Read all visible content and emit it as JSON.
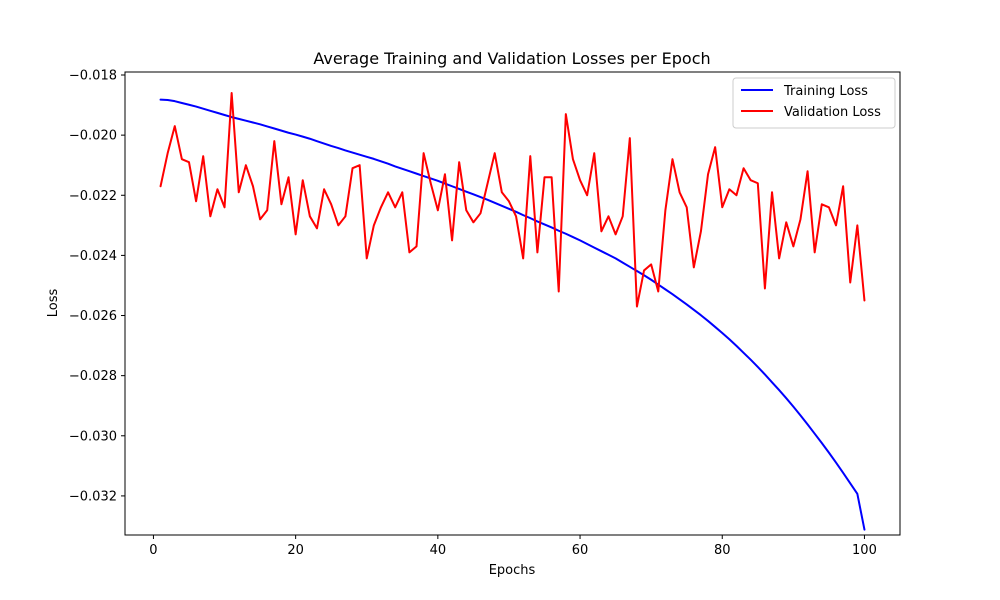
{
  "chart_data": {
    "type": "line",
    "title": "Average Training and Validation Losses per Epoch",
    "xlabel": "Epochs",
    "ylabel": "Loss",
    "xlim": [
      -4,
      105
    ],
    "ylim": [
      -0.0333,
      -0.0179
    ],
    "x_ticks": [
      0,
      20,
      40,
      60,
      80,
      100
    ],
    "y_ticks": [
      -0.018,
      -0.02,
      -0.022,
      -0.024,
      -0.026,
      -0.028,
      -0.03,
      -0.032
    ],
    "x_tick_labels": [
      "0",
      "20",
      "40",
      "60",
      "80",
      "100"
    ],
    "y_tick_labels": [
      "−0.018",
      "−0.020",
      "−0.022",
      "−0.024",
      "−0.026",
      "−0.028",
      "−0.030",
      "−0.032"
    ],
    "grid": false,
    "legend_position": "top-right",
    "x": [
      1,
      2,
      3,
      4,
      5,
      6,
      7,
      8,
      9,
      10,
      11,
      12,
      13,
      14,
      15,
      16,
      17,
      18,
      19,
      20,
      21,
      22,
      23,
      24,
      25,
      26,
      27,
      28,
      29,
      30,
      31,
      32,
      33,
      34,
      35,
      36,
      37,
      38,
      39,
      40,
      41,
      42,
      43,
      44,
      45,
      46,
      47,
      48,
      49,
      50,
      51,
      52,
      53,
      54,
      55,
      56,
      57,
      58,
      59,
      60,
      61,
      62,
      63,
      64,
      65,
      66,
      67,
      68,
      69,
      70,
      71,
      72,
      73,
      74,
      75,
      76,
      77,
      78,
      79,
      80,
      81,
      82,
      83,
      84,
      85,
      86,
      87,
      88,
      89,
      90,
      91,
      92,
      93,
      94,
      95,
      96,
      97,
      98,
      99,
      100
    ],
    "series": [
      {
        "name": "Training Loss",
        "color": "#0000ff",
        "values": [
          -0.01882,
          -0.01883,
          -0.01887,
          -0.01893,
          -0.01899,
          -0.01905,
          -0.01912,
          -0.01919,
          -0.01926,
          -0.01933,
          -0.0194,
          -0.01946,
          -0.01952,
          -0.01958,
          -0.01964,
          -0.01971,
          -0.01978,
          -0.01985,
          -0.01992,
          -0.01998,
          -0.02005,
          -0.02012,
          -0.0202,
          -0.02028,
          -0.02036,
          -0.02043,
          -0.02051,
          -0.02058,
          -0.02065,
          -0.02072,
          -0.02079,
          -0.02087,
          -0.02095,
          -0.02104,
          -0.02112,
          -0.0212,
          -0.02128,
          -0.02136,
          -0.02144,
          -0.02152,
          -0.02161,
          -0.0217,
          -0.02179,
          -0.02188,
          -0.02197,
          -0.02206,
          -0.02215,
          -0.02225,
          -0.02235,
          -0.02245,
          -0.02255,
          -0.02266,
          -0.02276,
          -0.02287,
          -0.02297,
          -0.02307,
          -0.02318,
          -0.02328,
          -0.02339,
          -0.0235,
          -0.02362,
          -0.02374,
          -0.02386,
          -0.02398,
          -0.0241,
          -0.02424,
          -0.02438,
          -0.02452,
          -0.02466,
          -0.02481,
          -0.02497,
          -0.02513,
          -0.02529,
          -0.02546,
          -0.02563,
          -0.02581,
          -0.02599,
          -0.02618,
          -0.02638,
          -0.02658,
          -0.02679,
          -0.02701,
          -0.02724,
          -0.02747,
          -0.02771,
          -0.02796,
          -0.02822,
          -0.02848,
          -0.02875,
          -0.02903,
          -0.02932,
          -0.02962,
          -0.02993,
          -0.03024,
          -0.03056,
          -0.03089,
          -0.03123,
          -0.03158,
          -0.03193,
          -0.03312
        ]
      },
      {
        "name": "Validation Loss",
        "color": "#ff0000",
        "values": [
          -0.0217,
          -0.0206,
          -0.0197,
          -0.0208,
          -0.0209,
          -0.0222,
          -0.0207,
          -0.0227,
          -0.0218,
          -0.0224,
          -0.0186,
          -0.0219,
          -0.021,
          -0.0217,
          -0.0228,
          -0.0225,
          -0.0202,
          -0.0223,
          -0.0214,
          -0.0233,
          -0.0215,
          -0.0227,
          -0.0231,
          -0.0218,
          -0.0223,
          -0.023,
          -0.0227,
          -0.0211,
          -0.021,
          -0.0241,
          -0.023,
          -0.0224,
          -0.0219,
          -0.0224,
          -0.0219,
          -0.0239,
          -0.0237,
          -0.0206,
          -0.0216,
          -0.0225,
          -0.0213,
          -0.0235,
          -0.0209,
          -0.0225,
          -0.0229,
          -0.0226,
          -0.0216,
          -0.0206,
          -0.0219,
          -0.0222,
          -0.0227,
          -0.0241,
          -0.0207,
          -0.0239,
          -0.0214,
          -0.0214,
          -0.0252,
          -0.0193,
          -0.0208,
          -0.0215,
          -0.022,
          -0.0206,
          -0.0232,
          -0.0227,
          -0.0233,
          -0.0227,
          -0.0201,
          -0.0257,
          -0.0245,
          -0.0243,
          -0.0252,
          -0.0225,
          -0.0208,
          -0.0219,
          -0.0224,
          -0.0244,
          -0.0232,
          -0.0213,
          -0.0204,
          -0.0224,
          -0.0218,
          -0.022,
          -0.0211,
          -0.0215,
          -0.0216,
          -0.0251,
          -0.0219,
          -0.0241,
          -0.0229,
          -0.0237,
          -0.0228,
          -0.0212,
          -0.0239,
          -0.0223,
          -0.0224,
          -0.023,
          -0.0217,
          -0.0249,
          -0.023,
          -0.0255
        ]
      }
    ]
  }
}
